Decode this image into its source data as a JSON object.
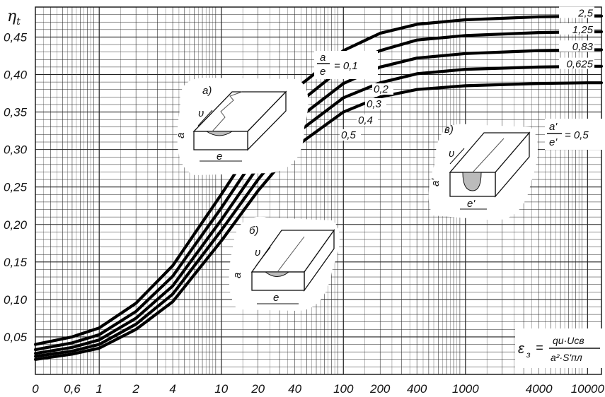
{
  "chart_data": {
    "type": "line",
    "ylabel": "η",
    "ylabel_sub": "t",
    "x_ticks": [
      "0",
      "0,6",
      "1",
      "2",
      "4",
      "10",
      "20",
      "40",
      "100",
      "200",
      "400",
      "1000",
      "4000",
      "10000"
    ],
    "x_tick_values": [
      0.3,
      0.6,
      1,
      2,
      4,
      10,
      20,
      40,
      100,
      200,
      400,
      1000,
      4000,
      10000
    ],
    "x_scale": "log",
    "xlim": [
      0.3,
      13000
    ],
    "y_ticks": [
      "0,05",
      "0,10",
      "0,15",
      "0,20",
      "0,25",
      "0,30",
      "0,35",
      "0,40",
      "0,45"
    ],
    "y_tick_values": [
      0.05,
      0.1,
      0.15,
      0.2,
      0.25,
      0.3,
      0.35,
      0.4,
      0.45
    ],
    "ylim": [
      0,
      0.49
    ],
    "grid": true,
    "line_color": "#000000",
    "x": [
      0.3,
      0.6,
      1,
      2,
      4,
      10,
      20,
      40,
      100,
      200,
      400,
      1000,
      4000,
      10000,
      13000
    ],
    "series": [
      {
        "name": "0,1",
        "label_right": "2,5",
        "values": [
          0.04,
          0.05,
          0.062,
          0.095,
          0.145,
          0.24,
          0.315,
          0.38,
          0.432,
          0.455,
          0.467,
          0.473,
          0.477,
          0.478,
          0.478
        ]
      },
      {
        "name": "0,2",
        "label_right": "1,25",
        "values": [
          0.033,
          0.042,
          0.053,
          0.084,
          0.131,
          0.222,
          0.295,
          0.358,
          0.41,
          0.432,
          0.446,
          0.452,
          0.456,
          0.457,
          0.457
        ]
      },
      {
        "name": "0,3",
        "label_right": "0,83",
        "values": [
          0.028,
          0.036,
          0.046,
          0.075,
          0.118,
          0.206,
          0.277,
          0.338,
          0.388,
          0.41,
          0.422,
          0.428,
          0.432,
          0.433,
          0.433
        ]
      },
      {
        "name": "0,4",
        "label_right": "0,625",
        "values": [
          0.024,
          0.031,
          0.04,
          0.067,
          0.107,
          0.192,
          0.26,
          0.32,
          0.369,
          0.389,
          0.401,
          0.407,
          0.41,
          0.411,
          0.411
        ]
      },
      {
        "name": "0,5",
        "label_right": "",
        "values": [
          0.02,
          0.027,
          0.035,
          0.06,
          0.097,
          0.178,
          0.245,
          0.303,
          0.35,
          0.37,
          0.38,
          0.385,
          0.388,
          0.389,
          0.389
        ]
      }
    ],
    "annotations": {
      "ratio_a_num": "a",
      "ratio_a_den": "e",
      "ratio_a_eq": "= 0,1",
      "ratio_b_num": "a'",
      "ratio_b_den": "e'",
      "ratio_b_eq": "= 0,5",
      "inset_a": "а)",
      "inset_b": "б)",
      "inset_c": "в)",
      "v_symbol": "υ",
      "a_symbol": "a",
      "e_symbol": "e",
      "a_prime_symbol": "a'",
      "e_prime_symbol": "e'",
      "formula_lhs": "ε",
      "formula_lhs_sub": "з",
      "formula_eq": "=",
      "formula_num": "qи·Uсв",
      "formula_den": "a²·S'пл"
    }
  }
}
